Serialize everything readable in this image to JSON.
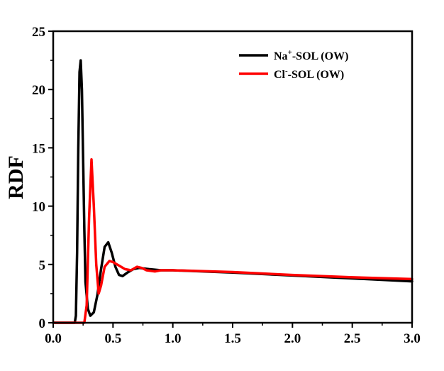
{
  "chart_data": {
    "type": "line",
    "title": "",
    "xlabel": "",
    "ylabel": "RDF",
    "xlim": [
      0,
      3
    ],
    "ylim": [
      0,
      25
    ],
    "x_ticks": [
      "0.0",
      "0.5",
      "1.0",
      "1.5",
      "2.0",
      "2.5",
      "3.0"
    ],
    "y_ticks": [
      "0",
      "5",
      "10",
      "15",
      "20",
      "25"
    ],
    "grid": false,
    "legend_position": "top-right",
    "series": [
      {
        "name": "Na⁺-SOL (OW)",
        "label_main": "Na",
        "label_sup": "+",
        "label_rest": "-SOL (OW)",
        "color": "#000000",
        "points": [
          [
            0.0,
            0
          ],
          [
            0.18,
            0
          ],
          [
            0.19,
            0.6
          ],
          [
            0.2,
            6
          ],
          [
            0.21,
            15
          ],
          [
            0.22,
            21.5
          ],
          [
            0.23,
            22.5
          ],
          [
            0.24,
            20
          ],
          [
            0.25,
            14
          ],
          [
            0.26,
            8
          ],
          [
            0.27,
            3.5
          ],
          [
            0.29,
            1.2
          ],
          [
            0.31,
            0.6
          ],
          [
            0.34,
            0.9
          ],
          [
            0.37,
            2.4
          ],
          [
            0.4,
            4.6
          ],
          [
            0.43,
            6.5
          ],
          [
            0.46,
            6.9
          ],
          [
            0.49,
            6.0
          ],
          [
            0.52,
            4.8
          ],
          [
            0.55,
            4.1
          ],
          [
            0.58,
            4.0
          ],
          [
            0.62,
            4.3
          ],
          [
            0.67,
            4.6
          ],
          [
            0.72,
            4.7
          ],
          [
            0.8,
            4.6
          ],
          [
            0.9,
            4.5
          ],
          [
            1.0,
            4.5
          ],
          [
            1.5,
            4.3
          ],
          [
            2.0,
            4.05
          ],
          [
            2.5,
            3.8
          ],
          [
            3.0,
            3.55
          ]
        ]
      },
      {
        "name": "Cl⁻-SOL (OW)",
        "label_main": "Cl",
        "label_sup": "-",
        "label_rest": "-SOL (OW)",
        "color": "#ff0000",
        "points": [
          [
            0.0,
            0
          ],
          [
            0.26,
            0
          ],
          [
            0.28,
            1.5
          ],
          [
            0.3,
            9
          ],
          [
            0.32,
            14.0
          ],
          [
            0.34,
            10
          ],
          [
            0.36,
            5
          ],
          [
            0.38,
            2.5
          ],
          [
            0.4,
            3.2
          ],
          [
            0.43,
            4.8
          ],
          [
            0.47,
            5.3
          ],
          [
            0.5,
            5.2
          ],
          [
            0.55,
            4.9
          ],
          [
            0.6,
            4.6
          ],
          [
            0.65,
            4.5
          ],
          [
            0.7,
            4.8
          ],
          [
            0.74,
            4.7
          ],
          [
            0.78,
            4.5
          ],
          [
            0.85,
            4.4
          ],
          [
            0.9,
            4.5
          ],
          [
            1.0,
            4.5
          ],
          [
            1.5,
            4.35
          ],
          [
            2.0,
            4.1
          ],
          [
            2.5,
            3.9
          ],
          [
            3.0,
            3.75
          ]
        ]
      }
    ]
  }
}
